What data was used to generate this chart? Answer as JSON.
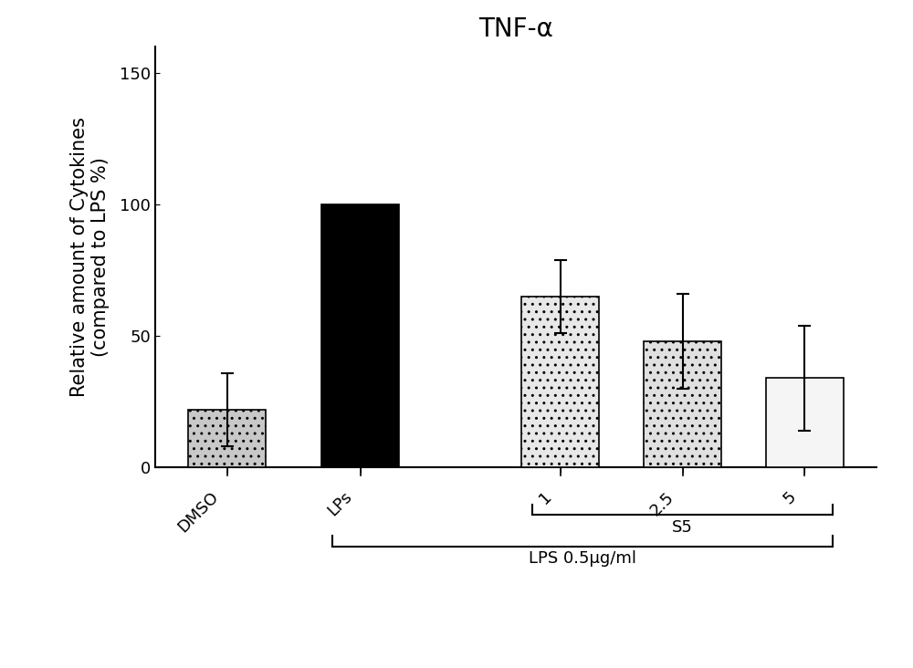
{
  "title": "TNF-α",
  "ylabel_line1": "Relative amount of Cytokines",
  "ylabel_line2": "(compared to LPS %)",
  "categories": [
    "DMSO",
    "LPS",
    "1",
    "2.5",
    "5"
  ],
  "values": [
    22,
    100,
    65,
    48,
    34
  ],
  "errors": [
    14,
    0,
    14,
    18,
    20
  ],
  "bar_colors": [
    "#c8c8c8",
    "#000000",
    "#e8e8e8",
    "#e0e0e0",
    "#f5f5f5"
  ],
  "bar_hatches": [
    "..",
    null,
    "..",
    "..",
    null
  ],
  "ylim": [
    0,
    160
  ],
  "yticks": [
    0,
    50,
    100,
    150
  ],
  "title_fontsize": 20,
  "axis_fontsize": 15,
  "tick_fontsize": 13,
  "bar_width": 0.7,
  "x_positions": [
    0,
    1.2,
    3.0,
    4.1,
    5.2
  ],
  "background_color": "#ffffff",
  "edgecolor": "#000000"
}
